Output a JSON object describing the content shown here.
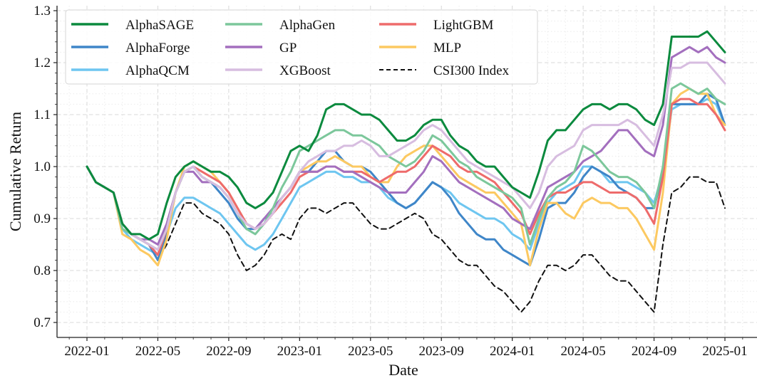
{
  "chart_data": {
    "type": "line",
    "title": "",
    "xlabel": "Date",
    "ylabel": "Cumulative Return",
    "ylim": [
      0.68,
      1.3
    ],
    "xlim_months": [
      -1.7,
      37.5
    ],
    "x_unit": "months since 2022-01",
    "yticks": [
      0.7,
      0.8,
      0.9,
      1.0,
      1.1,
      1.2,
      1.3
    ],
    "ytick_labels": [
      "0.7",
      "0.8",
      "0.9",
      "1.0",
      "1.1",
      "1.2",
      "1.3"
    ],
    "xticks": [
      0,
      4,
      8,
      12,
      16,
      20,
      24,
      28,
      32,
      36
    ],
    "xtick_labels": [
      "2022-01",
      "2022-05",
      "2022-09",
      "2023-01",
      "2023-05",
      "2023-09",
      "2024-01",
      "2024-05",
      "2024-09",
      "2025-01"
    ],
    "grid": true,
    "legend_position": "top-left",
    "legend_columns": 3,
    "x": [
      0,
      0.5,
      1,
      1.5,
      2,
      2.5,
      3,
      3.5,
      4,
      4.5,
      5,
      5.5,
      6,
      6.5,
      7,
      7.5,
      8,
      8.5,
      9,
      9.5,
      10,
      10.5,
      11,
      11.5,
      12,
      12.5,
      13,
      13.5,
      14,
      14.5,
      15,
      15.5,
      16,
      16.5,
      17,
      17.5,
      18,
      18.5,
      19,
      19.5,
      20,
      20.5,
      21,
      21.5,
      22,
      22.5,
      23,
      23.5,
      24,
      24.5,
      25,
      25.5,
      26,
      26.5,
      27,
      27.5,
      28,
      28.5,
      29,
      29.5,
      30,
      30.5,
      31,
      31.5,
      32,
      32.5,
      33,
      33.5,
      34,
      34.5,
      35,
      35.5,
      36
    ],
    "series": [
      {
        "name": "AlphaSAGE",
        "color": "#0b8a3e",
        "dash": false,
        "values": [
          1.0,
          0.97,
          0.96,
          0.95,
          0.89,
          0.87,
          0.87,
          0.86,
          0.87,
          0.93,
          0.98,
          1.0,
          1.01,
          1.0,
          0.99,
          0.99,
          0.98,
          0.96,
          0.93,
          0.92,
          0.93,
          0.95,
          0.99,
          1.03,
          1.04,
          1.03,
          1.06,
          1.11,
          1.12,
          1.12,
          1.11,
          1.1,
          1.1,
          1.09,
          1.07,
          1.05,
          1.05,
          1.06,
          1.08,
          1.09,
          1.09,
          1.06,
          1.04,
          1.03,
          1.01,
          1.0,
          1.0,
          0.98,
          0.96,
          0.95,
          0.94,
          0.99,
          1.05,
          1.07,
          1.07,
          1.09,
          1.11,
          1.12,
          1.12,
          1.11,
          1.12,
          1.12,
          1.11,
          1.09,
          1.08,
          1.12,
          1.25,
          1.25,
          1.25,
          1.25,
          1.26,
          1.24,
          1.22
        ]
      },
      {
        "name": "AlphaForge",
        "color": "#3f86c8",
        "dash": false,
        "values": [
          1.0,
          0.97,
          0.96,
          0.95,
          0.89,
          0.87,
          0.86,
          0.85,
          0.82,
          0.87,
          0.95,
          0.99,
          1.0,
          0.98,
          0.97,
          0.95,
          0.93,
          0.9,
          0.88,
          0.88,
          0.9,
          0.91,
          0.94,
          0.96,
          0.99,
          0.99,
          1.01,
          1.03,
          1.03,
          1.01,
          1.0,
          1.0,
          0.99,
          0.97,
          0.95,
          0.93,
          0.92,
          0.93,
          0.95,
          0.97,
          0.96,
          0.94,
          0.91,
          0.89,
          0.87,
          0.86,
          0.86,
          0.84,
          0.83,
          0.82,
          0.81,
          0.86,
          0.92,
          0.93,
          0.93,
          0.95,
          0.98,
          1.0,
          0.99,
          0.98,
          0.96,
          0.95,
          0.94,
          0.92,
          0.92,
          0.99,
          1.12,
          1.12,
          1.12,
          1.12,
          1.14,
          1.13,
          1.08
        ]
      },
      {
        "name": "AlphaQCM",
        "color": "#6ec6f0",
        "dash": false,
        "values": [
          1.0,
          0.97,
          0.96,
          0.95,
          0.88,
          0.86,
          0.85,
          0.84,
          0.83,
          0.87,
          0.92,
          0.94,
          0.94,
          0.93,
          0.92,
          0.91,
          0.89,
          0.87,
          0.85,
          0.84,
          0.85,
          0.87,
          0.9,
          0.93,
          0.96,
          0.97,
          0.98,
          0.99,
          0.99,
          0.98,
          0.98,
          0.97,
          0.97,
          0.96,
          0.94,
          0.93,
          0.92,
          0.93,
          0.95,
          0.97,
          0.96,
          0.95,
          0.93,
          0.92,
          0.91,
          0.9,
          0.9,
          0.89,
          0.87,
          0.86,
          0.84,
          0.89,
          0.93,
          0.95,
          0.96,
          0.97,
          1.0,
          1.0,
          0.99,
          0.97,
          0.97,
          0.97,
          0.96,
          0.95,
          0.93,
          0.99,
          1.11,
          1.12,
          1.12,
          1.12,
          1.13,
          1.12,
          1.08
        ]
      },
      {
        "name": "AlphaGen",
        "color": "#7cc79b",
        "dash": false,
        "values": [
          1.0,
          0.97,
          0.96,
          0.95,
          0.88,
          0.87,
          0.86,
          0.85,
          0.84,
          0.88,
          0.95,
          0.99,
          1.0,
          0.98,
          0.97,
          0.96,
          0.94,
          0.91,
          0.88,
          0.87,
          0.89,
          0.92,
          0.96,
          0.99,
          1.03,
          1.04,
          1.05,
          1.06,
          1.07,
          1.07,
          1.06,
          1.06,
          1.05,
          1.04,
          1.02,
          1.01,
          1.0,
          1.01,
          1.03,
          1.06,
          1.05,
          1.03,
          1.01,
          1.0,
          0.98,
          0.97,
          0.96,
          0.95,
          0.94,
          0.92,
          0.85,
          0.9,
          0.94,
          0.96,
          0.97,
          0.99,
          1.04,
          1.03,
          1.01,
          0.99,
          0.98,
          0.98,
          0.97,
          0.95,
          0.92,
          1.0,
          1.15,
          1.16,
          1.15,
          1.14,
          1.15,
          1.13,
          1.12
        ]
      },
      {
        "name": "GP",
        "color": "#a36fbe",
        "dash": false,
        "values": [
          1.0,
          0.97,
          0.96,
          0.95,
          0.89,
          0.87,
          0.86,
          0.86,
          0.85,
          0.89,
          0.95,
          0.99,
          0.99,
          0.97,
          0.97,
          0.96,
          0.94,
          0.91,
          0.89,
          0.88,
          0.9,
          0.92,
          0.94,
          0.96,
          0.99,
          0.99,
          0.99,
          1.0,
          1.0,
          0.99,
          0.99,
          0.98,
          0.97,
          0.96,
          0.95,
          0.95,
          0.95,
          0.97,
          0.99,
          1.02,
          1.01,
          0.99,
          0.97,
          0.96,
          0.95,
          0.94,
          0.93,
          0.92,
          0.9,
          0.89,
          0.88,
          0.92,
          0.96,
          0.97,
          0.98,
          0.99,
          1.01,
          1.02,
          1.03,
          1.05,
          1.07,
          1.07,
          1.05,
          1.03,
          1.02,
          1.08,
          1.21,
          1.22,
          1.23,
          1.22,
          1.23,
          1.21,
          1.2
        ]
      },
      {
        "name": "XGBoost",
        "color": "#d7bde0",
        "dash": false,
        "values": [
          1.0,
          0.97,
          0.96,
          0.95,
          0.89,
          0.87,
          0.86,
          0.85,
          0.84,
          0.88,
          0.95,
          0.99,
          1.0,
          0.98,
          0.97,
          0.96,
          0.94,
          0.91,
          0.89,
          0.88,
          0.89,
          0.91,
          0.94,
          0.96,
          0.99,
          1.01,
          1.02,
          1.03,
          1.03,
          1.04,
          1.04,
          1.05,
          1.04,
          1.02,
          1.02,
          1.03,
          1.04,
          1.05,
          1.07,
          1.08,
          1.07,
          1.05,
          1.03,
          1.01,
          1.0,
          0.99,
          0.98,
          0.97,
          0.96,
          0.94,
          0.92,
          0.95,
          1.0,
          1.02,
          1.03,
          1.04,
          1.07,
          1.08,
          1.08,
          1.08,
          1.08,
          1.09,
          1.08,
          1.06,
          1.04,
          1.1,
          1.19,
          1.19,
          1.2,
          1.2,
          1.2,
          1.18,
          1.16
        ]
      },
      {
        "name": "LightGBM",
        "color": "#ee6b6b",
        "dash": false,
        "values": [
          1.0,
          0.97,
          0.96,
          0.95,
          0.89,
          0.87,
          0.86,
          0.85,
          0.83,
          0.88,
          0.95,
          0.99,
          1.0,
          0.99,
          0.98,
          0.97,
          0.95,
          0.92,
          0.89,
          0.88,
          0.89,
          0.91,
          0.93,
          0.95,
          0.98,
          0.99,
          0.99,
          1.0,
          1.0,
          0.99,
          0.99,
          0.99,
          0.98,
          0.97,
          0.98,
          0.99,
          0.99,
          1.0,
          1.02,
          1.04,
          1.03,
          1.02,
          1.0,
          0.99,
          0.99,
          0.98,
          0.97,
          0.95,
          0.93,
          0.91,
          0.87,
          0.91,
          0.94,
          0.95,
          0.95,
          0.96,
          0.97,
          0.97,
          0.96,
          0.95,
          0.95,
          0.95,
          0.94,
          0.92,
          0.89,
          0.98,
          1.12,
          1.13,
          1.13,
          1.12,
          1.12,
          1.1,
          1.07
        ]
      },
      {
        "name": "MLP",
        "color": "#fcc961",
        "dash": false,
        "values": [
          1.0,
          0.97,
          0.96,
          0.95,
          0.87,
          0.86,
          0.84,
          0.83,
          0.81,
          0.86,
          0.95,
          1.0,
          1.01,
          1.0,
          0.99,
          0.97,
          0.95,
          0.92,
          0.89,
          0.88,
          0.89,
          0.91,
          0.94,
          0.96,
          0.99,
          1.0,
          1.01,
          1.01,
          1.02,
          1.01,
          1.0,
          1.0,
          0.98,
          0.97,
          0.97,
          1.0,
          1.02,
          1.03,
          1.04,
          1.04,
          1.02,
          1.0,
          0.98,
          0.97,
          0.96,
          0.95,
          0.95,
          0.93,
          0.91,
          0.89,
          0.81,
          0.88,
          0.93,
          0.93,
          0.91,
          0.9,
          0.93,
          0.94,
          0.93,
          0.93,
          0.92,
          0.92,
          0.9,
          0.87,
          0.84,
          0.95,
          1.12,
          1.14,
          1.15,
          1.14,
          1.14,
          1.1,
          1.08
        ]
      },
      {
        "name": "CSI300 Index",
        "color": "#111111",
        "dash": true,
        "values": [
          1.0,
          0.97,
          0.96,
          0.95,
          0.89,
          0.87,
          0.86,
          0.85,
          0.82,
          0.85,
          0.89,
          0.93,
          0.93,
          0.91,
          0.9,
          0.89,
          0.87,
          0.83,
          0.8,
          0.81,
          0.83,
          0.86,
          0.87,
          0.86,
          0.9,
          0.92,
          0.92,
          0.91,
          0.92,
          0.93,
          0.93,
          0.91,
          0.89,
          0.88,
          0.88,
          0.89,
          0.9,
          0.91,
          0.9,
          0.87,
          0.86,
          0.84,
          0.82,
          0.81,
          0.81,
          0.79,
          0.77,
          0.76,
          0.74,
          0.72,
          0.74,
          0.78,
          0.81,
          0.81,
          0.8,
          0.81,
          0.83,
          0.83,
          0.81,
          0.79,
          0.78,
          0.78,
          0.76,
          0.74,
          0.72,
          0.85,
          0.95,
          0.96,
          0.98,
          0.98,
          0.97,
          0.97,
          0.92
        ]
      }
    ]
  }
}
